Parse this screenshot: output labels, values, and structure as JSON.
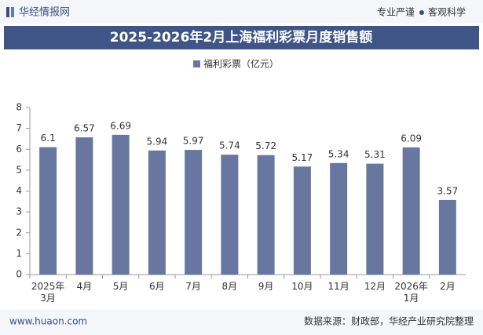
{
  "header": {
    "logo": "华经情报网",
    "tagline_left": "专业严谨",
    "tagline_right": "客观科学"
  },
  "chart_data": {
    "type": "bar",
    "title": "2025-2026年2月上海福利彩票月度销售额",
    "categories": [
      "2025年\n3月",
      "4月",
      "5月",
      "6月",
      "7月",
      "8月",
      "9月",
      "10月",
      "11月",
      "12月",
      "2026年\n1月",
      "2月"
    ],
    "series": [
      {
        "name": "福利彩票（亿元）",
        "color": "#67779f",
        "values": [
          6.1,
          6.57,
          6.69,
          5.94,
          5.97,
          5.74,
          5.72,
          5.17,
          5.34,
          5.31,
          6.09,
          3.57
        ]
      }
    ],
    "ylim": [
      0,
      8
    ],
    "yticks": [
      0,
      1,
      2,
      3,
      4,
      5,
      6,
      7,
      8
    ],
    "grid": false,
    "legend": "top"
  },
  "footer": {
    "website": "www.huaon.com",
    "source": "数据来源：财政部，华经产业研究院整理"
  }
}
